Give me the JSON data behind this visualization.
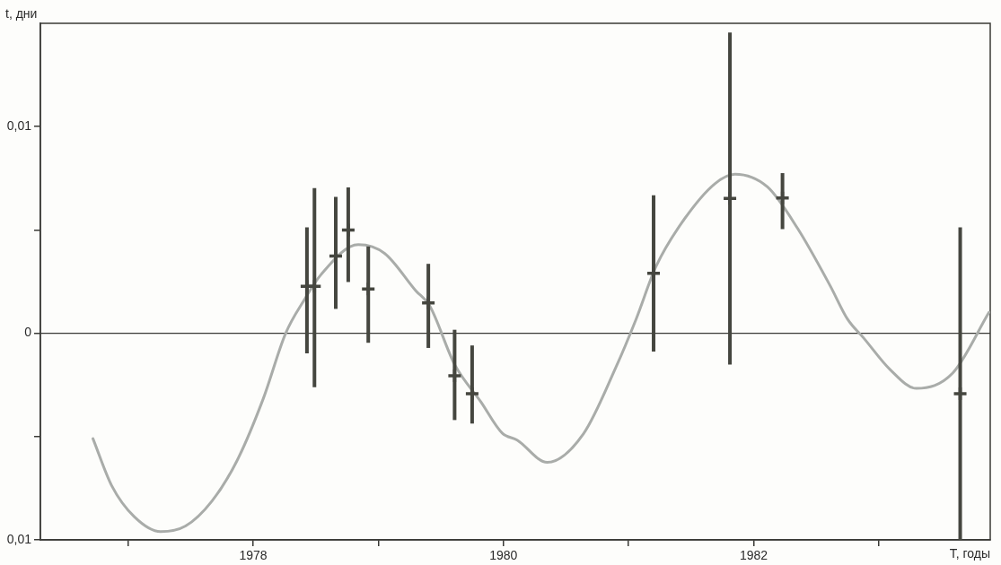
{
  "chart_data": {
    "type": "scatter",
    "xlabel": "T, годы",
    "ylabel": "t, дни",
    "xlim": [
      1976.3,
      1983.89
    ],
    "ylim": [
      -0.01,
      0.015
    ],
    "xticks": [
      {
        "value": 1977,
        "label": null
      },
      1978,
      {
        "value": 1979,
        "label": null
      },
      1980,
      {
        "value": 1981,
        "label": null
      },
      1982,
      {
        "value": 1983,
        "label": null
      }
    ],
    "yticks": [
      {
        "value": -0.01,
        "label": "0,01"
      },
      {
        "value": -0.005,
        "label": null
      },
      0,
      {
        "value": 0.005,
        "label": null
      },
      {
        "value": 0.01,
        "label": "0,01"
      }
    ],
    "grid": false,
    "legend": false,
    "ref_lines": [
      {
        "axis": "y",
        "value": 0,
        "color": "#3a3a36"
      }
    ],
    "series": [
      {
        "type": "line",
        "color": "#a9aca9",
        "x": [
          1976.72,
          1976.87,
          1977.05,
          1977.26,
          1977.46,
          1977.67,
          1977.87,
          1978.08,
          1978.26,
          1978.41,
          1978.54,
          1978.84,
          1979.05,
          1979.3,
          1979.41,
          1979.61,
          1979.82,
          1979.99,
          1980.11,
          1980.35,
          1980.64,
          1980.9,
          1981.06,
          1981.22,
          1981.43,
          1981.69,
          1981.85,
          1982.11,
          1982.35,
          1982.61,
          1982.75,
          1982.88,
          1983.09,
          1983.3,
          1983.59,
          1983.88
        ],
        "values": [
          -0.0051,
          -0.00738,
          -0.00888,
          -0.0096,
          -0.00933,
          -0.00813,
          -0.00618,
          -0.00318,
          0,
          0.00163,
          0.00282,
          0.00429,
          0.00387,
          0.00206,
          0.00134,
          -0.00151,
          -0.00332,
          -0.00483,
          -0.00517,
          -0.00625,
          -0.00486,
          -0.00163,
          0.00068,
          0.00324,
          0.00539,
          0.00724,
          0.0077,
          0.00708,
          0.00508,
          0.00231,
          0.00068,
          -0.00024,
          -0.00176,
          -0.00267,
          -0.00193,
          0.00101
        ]
      },
      {
        "type": "scatter",
        "color": "#45463f",
        "marker": "cross",
        "x": [
          1978.43,
          1978.49,
          1978.66,
          1978.76,
          1978.92,
          1979.4,
          1979.61,
          1979.75,
          1981.2,
          1981.81,
          1982.23,
          1983.65
        ],
        "values": [
          0.00227,
          0.00227,
          0.00374,
          0.005,
          0.00214,
          0.00147,
          -0.00206,
          -0.00292,
          0.0029,
          0.00653,
          0.00655,
          -0.00292
        ],
        "errors": [
          [
            -0.00097,
            0.00513
          ],
          [
            -0.00261,
            0.00702
          ],
          [
            0.00118,
            0.0066
          ],
          [
            0.00248,
            0.00706
          ],
          [
            -0.00046,
            0.0042
          ],
          [
            -0.00071,
            0.00336
          ],
          [
            -0.0042,
            0.00017
          ],
          [
            -0.00437,
            -0.00059
          ],
          [
            -0.00088,
            0.00668
          ],
          [
            -0.00151,
            0.01456
          ],
          [
            0.00504,
            0.00775
          ],
          [
            -0.01,
            0.00513
          ]
        ]
      }
    ]
  }
}
